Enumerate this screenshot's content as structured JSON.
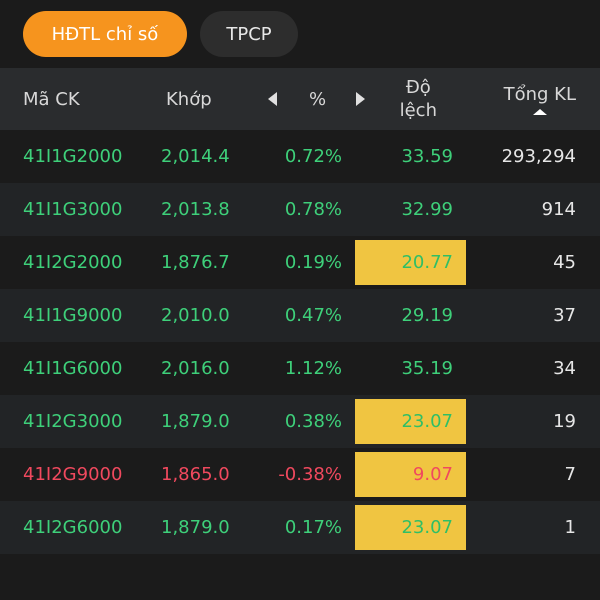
{
  "tabs": [
    {
      "label": "HĐTL chỉ số",
      "active": true
    },
    {
      "label": "TPCP",
      "active": false
    }
  ],
  "header": {
    "code": "Mã CK",
    "match": "Khớp",
    "pct": "%",
    "diff_line1": "Độ",
    "diff_line2": "lệch",
    "vol": "Tổng KL"
  },
  "colors": {
    "accent": "#f6941e",
    "up": "#3ed07a",
    "down": "#f0495e",
    "highlight": "#f0c541"
  },
  "rows": [
    {
      "code": "41I1G2000",
      "match": "2,014.4",
      "pct": "0.72%",
      "diff": "33.59",
      "vol": "293,294",
      "trend": "up",
      "highlight": false
    },
    {
      "code": "41I1G3000",
      "match": "2,013.8",
      "pct": "0.78%",
      "diff": "32.99",
      "vol": "914",
      "trend": "up",
      "highlight": false
    },
    {
      "code": "41I2G2000",
      "match": "1,876.7",
      "pct": "0.19%",
      "diff": "20.77",
      "vol": "45",
      "trend": "up",
      "highlight": true
    },
    {
      "code": "41I1G9000",
      "match": "2,010.0",
      "pct": "0.47%",
      "diff": "29.19",
      "vol": "37",
      "trend": "up",
      "highlight": false
    },
    {
      "code": "41I1G6000",
      "match": "2,016.0",
      "pct": "1.12%",
      "diff": "35.19",
      "vol": "34",
      "trend": "up",
      "highlight": false
    },
    {
      "code": "41I2G3000",
      "match": "1,879.0",
      "pct": "0.38%",
      "diff": "23.07",
      "vol": "19",
      "trend": "up",
      "highlight": true
    },
    {
      "code": "41I2G9000",
      "match": "1,865.0",
      "pct": "-0.38%",
      "diff": "9.07",
      "vol": "7",
      "trend": "down",
      "highlight": true
    },
    {
      "code": "41I2G6000",
      "match": "1,879.0",
      "pct": "0.17%",
      "diff": "23.07",
      "vol": "1",
      "trend": "up",
      "highlight": true
    }
  ]
}
